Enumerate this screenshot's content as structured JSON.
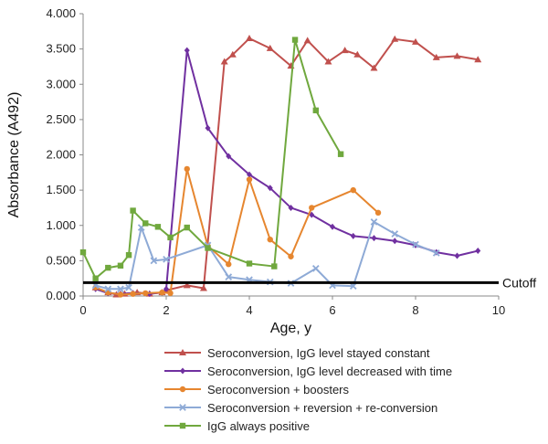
{
  "chart_data": {
    "type": "line",
    "xlabel": "Age, y",
    "ylabel": "Absorbance (A492)",
    "xlim": [
      0,
      10
    ],
    "ylim": [
      0,
      4.0
    ],
    "x_ticks": [
      "0",
      "2",
      "4",
      "6",
      "8",
      "10"
    ],
    "y_ticks": [
      "0.000",
      "0.500",
      "1.000",
      "1.500",
      "2.000",
      "2.500",
      "3.000",
      "3.500",
      "4.000"
    ],
    "grid": false,
    "legend_position": "bottom",
    "cutoff": {
      "label": "Cutoff",
      "value": 0.19,
      "color": "#000000"
    },
    "series": [
      {
        "name": "Seroconversion, IgG level stayed constant",
        "color": "#c0504d",
        "marker": "triangle",
        "points": [
          [
            0.3,
            0.12
          ],
          [
            0.6,
            0.05
          ],
          [
            0.8,
            0.02
          ],
          [
            1.0,
            0.03
          ],
          [
            1.3,
            0.05
          ],
          [
            1.6,
            0.03
          ],
          [
            1.9,
            0.05
          ],
          [
            2.0,
            0.08
          ],
          [
            2.5,
            0.15
          ],
          [
            2.9,
            0.11
          ],
          [
            3.4,
            3.32
          ],
          [
            3.6,
            3.42
          ],
          [
            4.0,
            3.65
          ],
          [
            4.5,
            3.51
          ],
          [
            5.0,
            3.26
          ],
          [
            5.4,
            3.62
          ],
          [
            5.9,
            3.32
          ],
          [
            6.3,
            3.48
          ],
          [
            6.6,
            3.42
          ],
          [
            7.0,
            3.23
          ],
          [
            7.5,
            3.64
          ],
          [
            8.0,
            3.6
          ],
          [
            8.5,
            3.38
          ],
          [
            9.0,
            3.4
          ],
          [
            9.5,
            3.35
          ]
        ]
      },
      {
        "name": "Seroconversion, IgG level decreased with time",
        "color": "#7030a0",
        "marker": "diamond",
        "points": [
          [
            0.3,
            0.1
          ],
          [
            0.6,
            0.04
          ],
          [
            0.9,
            0.03
          ],
          [
            1.2,
            0.04
          ],
          [
            1.6,
            0.03
          ],
          [
            1.9,
            0.05
          ],
          [
            2.0,
            0.1
          ],
          [
            2.5,
            3.48
          ],
          [
            3.0,
            2.38
          ],
          [
            3.5,
            1.98
          ],
          [
            4.0,
            1.72
          ],
          [
            4.5,
            1.53
          ],
          [
            5.0,
            1.25
          ],
          [
            5.5,
            1.15
          ],
          [
            6.0,
            0.98
          ],
          [
            6.5,
            0.85
          ],
          [
            7.0,
            0.82
          ],
          [
            7.5,
            0.78
          ],
          [
            8.0,
            0.72
          ],
          [
            8.5,
            0.62
          ],
          [
            9.0,
            0.57
          ],
          [
            9.5,
            0.64
          ]
        ]
      },
      {
        "name": "Seroconversion + boosters",
        "color": "#e6862f",
        "marker": "circle",
        "points": [
          [
            0.3,
            0.12
          ],
          [
            0.6,
            0.05
          ],
          [
            0.9,
            0.02
          ],
          [
            1.2,
            0.03
          ],
          [
            1.5,
            0.04
          ],
          [
            1.9,
            0.05
          ],
          [
            2.1,
            0.04
          ],
          [
            2.5,
            1.8
          ],
          [
            3.0,
            0.71
          ],
          [
            3.5,
            0.45
          ],
          [
            4.0,
            1.65
          ],
          [
            4.5,
            0.8
          ],
          [
            5.0,
            0.56
          ],
          [
            5.5,
            1.25
          ],
          [
            6.5,
            1.5
          ],
          [
            7.1,
            1.18
          ]
        ]
      },
      {
        "name": "Seroconversion + reversion + re-conversion",
        "color": "#8eaad6",
        "marker": "x",
        "points": [
          [
            0.3,
            0.15
          ],
          [
            0.6,
            0.1
          ],
          [
            0.9,
            0.1
          ],
          [
            1.1,
            0.12
          ],
          [
            1.4,
            0.97
          ],
          [
            1.7,
            0.5
          ],
          [
            2.0,
            0.52
          ],
          [
            3.0,
            0.72
          ],
          [
            3.5,
            0.27
          ],
          [
            4.0,
            0.23
          ],
          [
            4.5,
            0.2
          ],
          [
            5.0,
            0.18
          ],
          [
            5.6,
            0.39
          ],
          [
            6.0,
            0.15
          ],
          [
            6.5,
            0.14
          ],
          [
            7.0,
            1.05
          ],
          [
            7.5,
            0.88
          ],
          [
            8.0,
            0.73
          ],
          [
            8.5,
            0.61
          ]
        ]
      },
      {
        "name": "IgG always positive",
        "color": "#70a83e",
        "marker": "square",
        "points": [
          [
            0.0,
            0.62
          ],
          [
            0.3,
            0.25
          ],
          [
            0.6,
            0.4
          ],
          [
            0.9,
            0.43
          ],
          [
            1.1,
            0.58
          ],
          [
            1.2,
            1.21
          ],
          [
            1.5,
            1.03
          ],
          [
            1.8,
            0.98
          ],
          [
            2.1,
            0.83
          ],
          [
            2.5,
            0.97
          ],
          [
            3.0,
            0.68
          ],
          [
            4.0,
            0.46
          ],
          [
            4.6,
            0.42
          ],
          [
            5.1,
            3.63
          ],
          [
            5.6,
            2.63
          ],
          [
            6.2,
            2.01
          ]
        ]
      }
    ]
  }
}
